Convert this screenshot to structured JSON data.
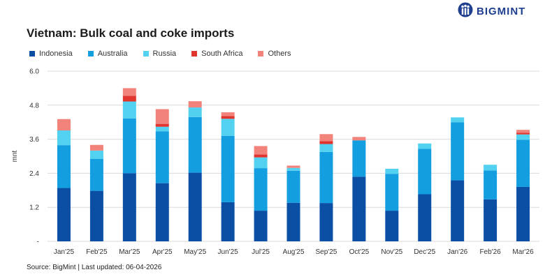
{
  "title": "Vietnam: Bulk coal and coke imports",
  "brand": {
    "name": "BIGMINT",
    "logo_icon": "bigmint-people-icon",
    "color": "#1e3f8f"
  },
  "source": "Source: BigMint | Last updated: 06-04-2026",
  "chart_data": {
    "type": "bar",
    "stacked": true,
    "title": "Vietnam: Bulk coal and coke imports",
    "xlabel": "",
    "ylabel": "mnt",
    "ylim": [
      0,
      6.0
    ],
    "yticks": [
      "-",
      "1.2",
      "2.4",
      "3.6",
      "4.8",
      "6.0"
    ],
    "grid": true,
    "legend_position": "top-left",
    "categories": [
      "Jan'25",
      "Feb'25",
      "Mar'25",
      "Apr'25",
      "May'25",
      "Jun'25",
      "Jul'25",
      "Aug'25",
      "Sep'25",
      "Oct'25",
      "Nov'25",
      "Dec'25",
      "Jan'26",
      "Feb'26",
      "Mar'26"
    ],
    "series": [
      {
        "name": "Indonesia",
        "color": "#0b4fa5",
        "values": [
          1.88,
          1.78,
          2.4,
          2.05,
          2.42,
          1.38,
          1.08,
          1.36,
          1.35,
          2.28,
          1.08,
          1.66,
          2.15,
          1.48,
          1.92
        ]
      },
      {
        "name": "Australia",
        "color": "#139ee0",
        "values": [
          1.51,
          1.13,
          1.93,
          1.83,
          1.96,
          2.34,
          1.5,
          1.13,
          1.8,
          1.28,
          1.3,
          1.6,
          2.05,
          1.02,
          1.66
        ]
      },
      {
        "name": "Russia",
        "color": "#53d1f0",
        "values": [
          0.52,
          0.29,
          0.6,
          0.16,
          0.34,
          0.6,
          0.38,
          0.1,
          0.28,
          0.0,
          0.18,
          0.19,
          0.17,
          0.2,
          0.19
        ]
      },
      {
        "name": "South Africa",
        "color": "#e0342e",
        "values": [
          0.0,
          0.0,
          0.2,
          0.1,
          0.0,
          0.1,
          0.1,
          0.0,
          0.1,
          0.0,
          0.0,
          0.0,
          0.0,
          0.0,
          0.06
        ]
      },
      {
        "name": "Others",
        "color": "#f2837b",
        "values": [
          0.4,
          0.2,
          0.27,
          0.52,
          0.22,
          0.13,
          0.3,
          0.08,
          0.25,
          0.12,
          0.0,
          0.0,
          0.0,
          0.0,
          0.1
        ]
      }
    ]
  }
}
